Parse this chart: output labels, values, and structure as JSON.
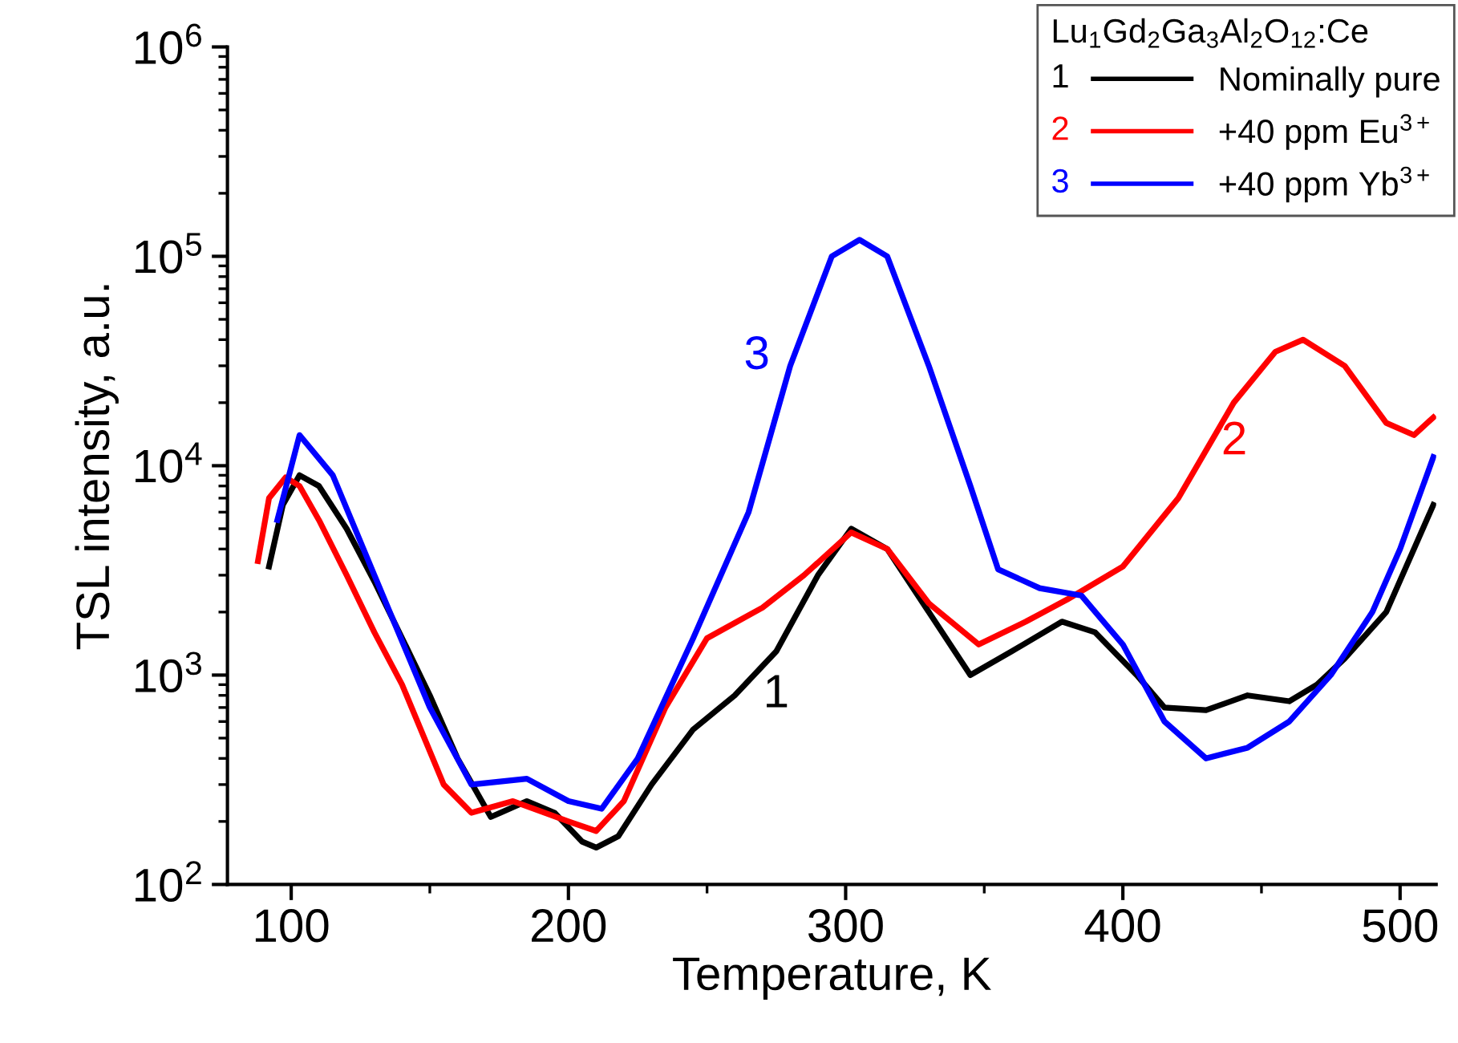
{
  "chart_data": {
    "type": "line",
    "xlabel": "Temperature, K",
    "ylabel": "TSL intensity, a.u.",
    "log": "y",
    "xlim": [
      77,
      513
    ],
    "xticks": [
      100,
      200,
      300,
      400,
      500
    ],
    "ylim": [
      100,
      1000000
    ],
    "yticks": [
      {
        "value": 100,
        "label": "10$^{2}$"
      },
      {
        "value": 1000,
        "label": "10$^{3}$"
      },
      {
        "value": 10000,
        "label": "10$^{4}$"
      },
      {
        "value": 100000,
        "label": "10$^{5}$"
      },
      {
        "value": 1000000,
        "label": "10$^{6}$"
      }
    ],
    "legend": "top right",
    "legend_title": "Lu$_{1}$Gd$_{2}$Ga$_{3}$Al$_{2}$O$_{12}$:Ce",
    "grid": false,
    "marker": "none",
    "line_style": "solid",
    "series": [
      {
        "name": "Nominally pure",
        "color": "#000000",
        "x": [
          92,
          97,
          103,
          110,
          120,
          130,
          140,
          150,
          160,
          172,
          185,
          195,
          205,
          210,
          218,
          230,
          245,
          260,
          275,
          290,
          302,
          315,
          330,
          345,
          360,
          378,
          390,
          405,
          415,
          430,
          445,
          460,
          470,
          480,
          495,
          512
        ],
        "values": [
          3300,
          6500,
          9000,
          8000,
          5000,
          2800,
          1500,
          800,
          400,
          210,
          250,
          220,
          160,
          150,
          170,
          300,
          550,
          800,
          1300,
          3000,
          5000,
          4000,
          2000,
          1000,
          1300,
          1800,
          1600,
          1000,
          700,
          680,
          800,
          750,
          900,
          1200,
          2000,
          6500
        ]
      },
      {
        "name": "+40 ppm Eu$^{3+}$",
        "color": "#ff0000",
        "x": [
          88,
          92,
          98,
          103,
          110,
          120,
          130,
          140,
          155,
          165,
          180,
          200,
          210,
          220,
          235,
          250,
          270,
          285,
          302,
          315,
          330,
          348,
          365,
          380,
          400,
          420,
          440,
          455,
          465,
          480,
          495,
          505,
          512
        ],
        "values": [
          3500,
          7000,
          8800,
          8000,
          5500,
          3000,
          1600,
          900,
          300,
          220,
          250,
          200,
          180,
          250,
          700,
          1500,
          2100,
          3000,
          4800,
          4000,
          2200,
          1400,
          1800,
          2300,
          3300,
          7000,
          20000,
          35000,
          40000,
          30000,
          16000,
          14000,
          17000
        ]
      },
      {
        "name": "+40 ppm Yb$^{3+}$",
        "color": "#0000ff",
        "x": [
          95,
          103,
          115,
          130,
          150,
          165,
          185,
          200,
          212,
          225,
          245,
          265,
          280,
          295,
          305,
          315,
          330,
          345,
          355,
          370,
          385,
          400,
          415,
          430,
          445,
          460,
          475,
          490,
          500,
          512
        ],
        "values": [
          5500,
          14000,
          9000,
          3000,
          700,
          300,
          320,
          250,
          230,
          400,
          1500,
          6000,
          30000,
          100000,
          120000,
          100000,
          30000,
          8000,
          3200,
          2600,
          2400,
          1400,
          600,
          400,
          450,
          600,
          1000,
          2000,
          4000,
          11000
        ]
      }
    ],
    "annotations": [
      "1",
      "2",
      "3"
    ]
  }
}
